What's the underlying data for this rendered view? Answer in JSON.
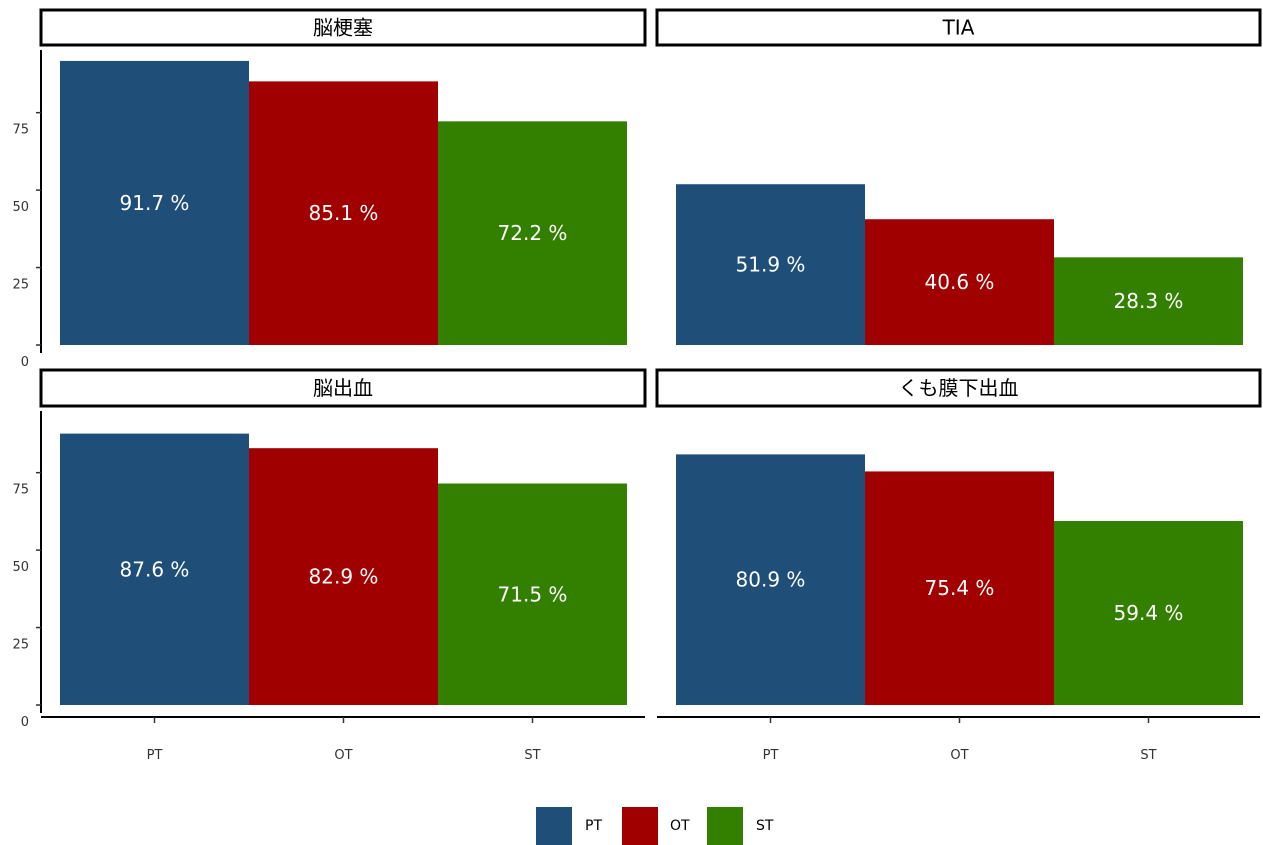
{
  "chart_data": {
    "type": "bar",
    "facets": [
      {
        "title": "脳梗塞",
        "values": [
          91.7,
          85.1,
          72.2
        ],
        "labels": [
          "91.7 %",
          "85.1 %",
          "72.2 %"
        ]
      },
      {
        "title": "TIA",
        "values": [
          51.9,
          40.6,
          28.3
        ],
        "labels": [
          "51.9 %",
          "40.6 %",
          "28.3 %"
        ]
      },
      {
        "title": "脳出血",
        "values": [
          87.6,
          82.9,
          71.5
        ],
        "labels": [
          "87.6 %",
          "82.9 %",
          "71.5 %"
        ]
      },
      {
        "title": "くも膜下出血",
        "values": [
          80.9,
          75.4,
          59.4
        ],
        "labels": [
          "80.9 %",
          "75.4 %",
          "59.4 %"
        ]
      }
    ],
    "categories": [
      "PT",
      "OT",
      "ST"
    ],
    "colors": [
      "#1f4e79",
      "#a00000",
      "#338000"
    ],
    "ylim": [
      0,
      92
    ],
    "yticks": [
      0,
      25,
      50,
      75
    ],
    "xlabel": "",
    "ylabel": "",
    "legend": {
      "position": "bottom",
      "entries": [
        "PT",
        "OT",
        "ST"
      ]
    }
  }
}
